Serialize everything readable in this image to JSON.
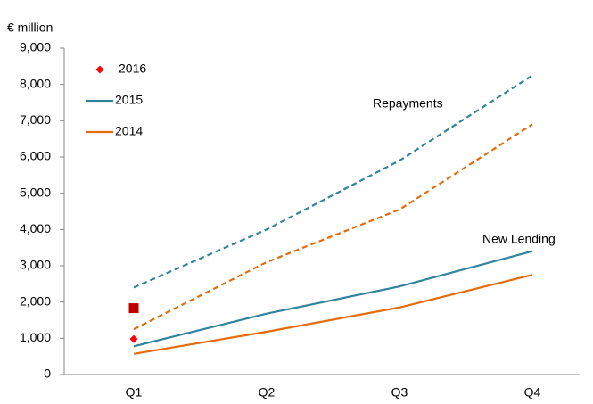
{
  "chart_data": {
    "type": "line",
    "y_label": "€ million",
    "categories": [
      "Q1",
      "Q2",
      "Q3",
      "Q4"
    ],
    "series": [
      {
        "name": "2016",
        "color": "#ff0000",
        "style": "marker",
        "marker": "diamond",
        "values": [
          980,
          null,
          null,
          null
        ]
      },
      {
        "name": "2015",
        "color": "#31849b",
        "style": "dashed",
        "values": [
          2400,
          4000,
          5900,
          8250
        ]
      },
      {
        "name": "2014",
        "color": "#e46c0a",
        "style": "dashed",
        "values": [
          1250,
          3100,
          4550,
          6900
        ]
      },
      {
        "name": "2015",
        "color": "#31849b",
        "style": "solid",
        "values": [
          780,
          1680,
          2430,
          3400
        ]
      },
      {
        "name": "2014",
        "color": "#e46c0a",
        "style": "solid",
        "values": [
          570,
          1180,
          1850,
          2750
        ]
      },
      {
        "name": "2016",
        "color": "#c00000",
        "style": "marker",
        "marker": "square",
        "values": [
          1830,
          null,
          null,
          null
        ]
      }
    ],
    "annotations": [
      "Repayments",
      "New Lending"
    ],
    "ylim": [
      0,
      9000
    ],
    "yticks": [
      {
        "value": 0,
        "label": "0"
      },
      {
        "value": 1000,
        "label": "1,000"
      },
      {
        "value": 2000,
        "label": "2,000"
      },
      {
        "value": 3000,
        "label": "3,000"
      },
      {
        "value": 4000,
        "label": "4,000"
      },
      {
        "value": 5000,
        "label": "5,000"
      },
      {
        "value": 6000,
        "label": "6,000"
      },
      {
        "value": 7000,
        "label": "7,000"
      },
      {
        "value": 8000,
        "label": "8,000"
      },
      {
        "value": 9000,
        "label": "9,000"
      }
    ],
    "grid": false
  }
}
